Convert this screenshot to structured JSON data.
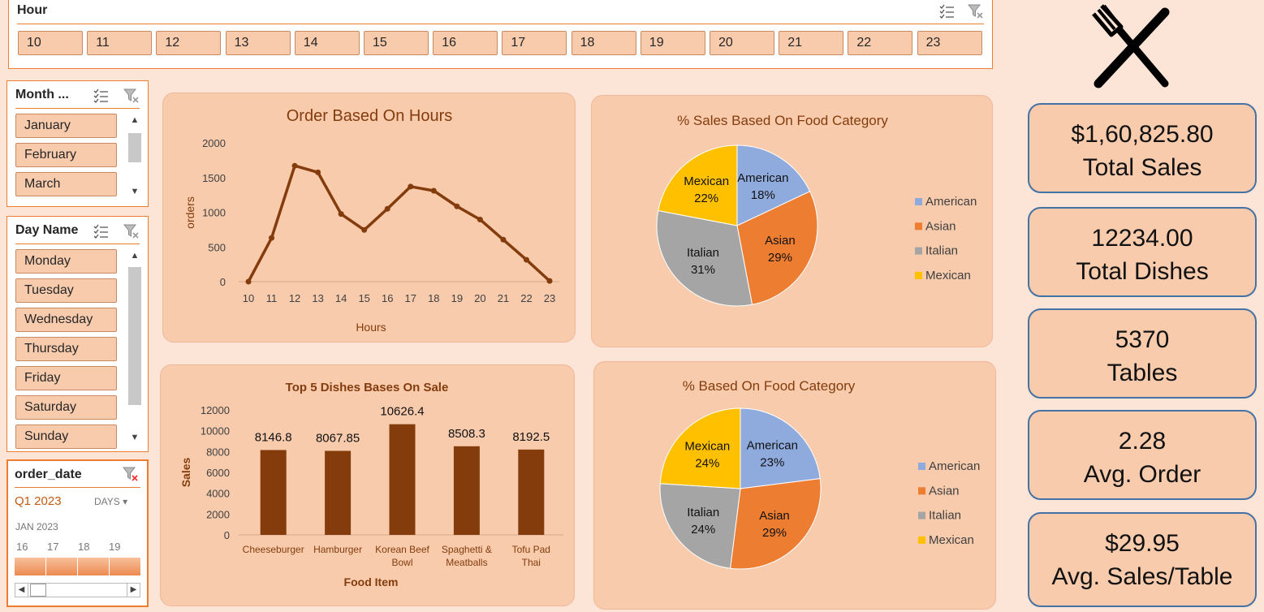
{
  "slicers": {
    "hour": {
      "title": "Hour",
      "items": [
        "10",
        "11",
        "12",
        "13",
        "14",
        "15",
        "16",
        "17",
        "18",
        "19",
        "20",
        "21",
        "22",
        "23"
      ]
    },
    "month": {
      "title": "Month ...",
      "items": [
        "January",
        "February",
        "March"
      ]
    },
    "day": {
      "title": "Day Name",
      "items": [
        "Monday",
        "Tuesday",
        "Wednesday",
        "Thursday",
        "Friday",
        "Saturday",
        "Sunday"
      ]
    },
    "timeline": {
      "title": "order_date",
      "period": "Q1 2023",
      "level": "DAYS",
      "month": "JAN 2023",
      "days": [
        "16",
        "17",
        "18",
        "19"
      ]
    }
  },
  "icons": {
    "logo": "fork-knife-icon",
    "multiselect": "multiselect-icon",
    "clear_filter": "clear-filter-icon"
  },
  "kpis": [
    {
      "value": "$1,60,825.80",
      "label": "Total Sales"
    },
    {
      "value": "12234.00",
      "label": "Total Dishes"
    },
    {
      "value": "5370",
      "label": "Tables"
    },
    {
      "value": "2.28",
      "label": "Avg. Order"
    },
    {
      "value": "$29.95",
      "label": "Avg. Sales/Table"
    }
  ],
  "colors": {
    "background": "#fce4d6",
    "panel": "#f8cbad",
    "dark": "#843c0c",
    "american": "#8faadc",
    "asian": "#ed7d31",
    "italian": "#a5a5a5",
    "mexican": "#ffc000"
  },
  "chart_data": [
    {
      "type": "line",
      "title": "Order Based On Hours",
      "xlabel": "Hours",
      "ylabel": "orders",
      "x": [
        "10",
        "11",
        "12",
        "13",
        "14",
        "15",
        "16",
        "17",
        "18",
        "19",
        "20",
        "21",
        "22",
        "23"
      ],
      "values": [
        0,
        630,
        1670,
        1575,
        975,
        745,
        1050,
        1370,
        1310,
        1085,
        895,
        605,
        315,
        10
      ],
      "ylim": [
        0,
        2000
      ],
      "yticks": [
        0,
        500,
        1000,
        1500,
        2000
      ]
    },
    {
      "type": "pie",
      "title": "% Sales Based On Food Category",
      "labels": [
        "American",
        "Asian",
        "Italian",
        "Mexican"
      ],
      "values": [
        18,
        29,
        31,
        22
      ],
      "value_labels": [
        "18%",
        "29%",
        "31%",
        "22%"
      ],
      "legend": "right"
    },
    {
      "type": "bar",
      "title": "Top 5 Dishes Bases On Sale",
      "xlabel": "Food Item",
      "ylabel": "Sales",
      "categories": [
        "Cheeseburger",
        "Hamburger",
        "Korean Beef Bowl",
        "Spaghetti & Meatballs",
        "Tofu Pad Thai"
      ],
      "values": [
        8146.8,
        8067.85,
        10626.4,
        8508.3,
        8192.5
      ],
      "value_labels": [
        "8146.8",
        "8067.85",
        "10626.4",
        "8508.3",
        "8192.5"
      ],
      "ylim": [
        0,
        12000
      ],
      "yticks": [
        0,
        2000,
        4000,
        6000,
        8000,
        10000,
        12000
      ]
    },
    {
      "type": "pie",
      "title": "% Based On Food Category",
      "labels": [
        "American",
        "Asian",
        "Italian",
        "Mexican"
      ],
      "values": [
        23,
        29,
        24,
        24
      ],
      "value_labels": [
        "23%",
        "29%",
        "24%",
        "24%"
      ],
      "legend": "right"
    }
  ]
}
